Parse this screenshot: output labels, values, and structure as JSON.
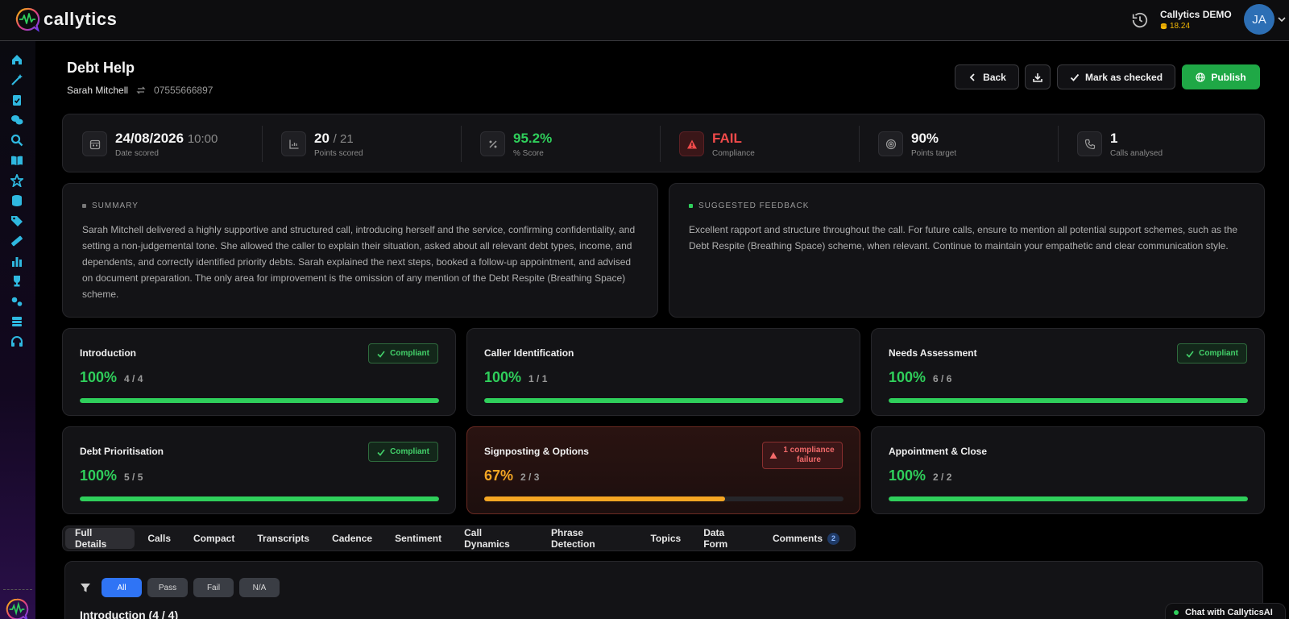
{
  "app": {
    "name": "callytics"
  },
  "account": {
    "name": "Callytics DEMO",
    "credit": "18.24",
    "initials": "JA"
  },
  "page": {
    "title": "Debt Help",
    "agent": "Sarah Mitchell",
    "phone": "07555666897"
  },
  "actions": {
    "back": "Back",
    "mark_checked": "Mark as checked",
    "publish": "Publish"
  },
  "stats": {
    "date": "24/08/2026",
    "time": "10:00",
    "date_label": "Date scored",
    "points": "20",
    "points_total": "/ 21",
    "points_label": "Points scored",
    "score": "95.2%",
    "score_label": "% Score",
    "compliance": "FAIL",
    "compliance_label": "Compliance",
    "target": "90%",
    "target_label": "Points target",
    "calls": "1",
    "calls_label": "Calls analysed"
  },
  "summary": {
    "heading": "SUMMARY",
    "text": "Sarah Mitchell delivered a highly supportive and structured call, introducing herself and the service, confirming confidentiality, and setting a non-judgemental tone. She allowed the caller to explain their situation, asked about all relevant debt types, income, and dependents, and correctly identified priority debts. Sarah explained the next steps, booked a follow-up appointment, and advised on document preparation. The only area for improvement is the omission of any mention of the Debt Respite (Breathing Space) scheme."
  },
  "feedback": {
    "heading": "SUGGESTED FEEDBACK",
    "text": "Excellent rapport and structure throughout the call. For future calls, ensure to mention all potential support schemes, such as the Debt Respite (Breathing Space) scheme, when relevant. Continue to maintain your empathetic and clear communication style."
  },
  "sections": [
    {
      "title": "Introduction",
      "pct": "100%",
      "pts": "4 / 4",
      "progress": 1.0,
      "badge": "Compliant"
    },
    {
      "title": "Caller Identification",
      "pct": "100%",
      "pts": "1 / 1",
      "progress": 1.0,
      "badge": ""
    },
    {
      "title": "Needs Assessment",
      "pct": "100%",
      "pts": "6 / 6",
      "progress": 1.0,
      "badge": "Compliant"
    },
    {
      "title": "Debt Prioritisation",
      "pct": "100%",
      "pts": "5 / 5",
      "progress": 1.0,
      "badge": "Compliant"
    },
    {
      "title": "Signposting & Options",
      "pct": "67%",
      "pts": "2 / 3",
      "progress": 0.67,
      "badge": "1 compliance failure"
    },
    {
      "title": "Appointment & Close",
      "pct": "100%",
      "pts": "2 / 2",
      "progress": 1.0,
      "badge": ""
    }
  ],
  "tabs": [
    "Full Details",
    "Calls",
    "Compact",
    "Transcripts",
    "Cadence",
    "Sentiment",
    "Call Dynamics",
    "Phrase Detection",
    "Topics",
    "Data Form",
    "Comments"
  ],
  "comments_count": "2",
  "filters": [
    "All",
    "Pass",
    "Fail",
    "N/A"
  ],
  "details_heading": "Introduction (4 / 4)",
  "chat": {
    "label": "Chat with CallyticsAI"
  },
  "colors": {
    "accent_green": "#1fa846",
    "fail_red": "#f04a4a",
    "warn_orange": "#f5a623",
    "filter_blue": "#2f74f5"
  }
}
